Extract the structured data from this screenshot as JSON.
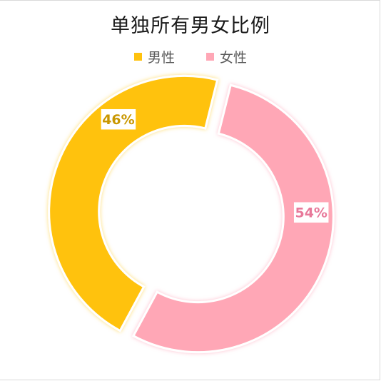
{
  "chart_data": {
    "type": "pie",
    "variant": "doughnut-exploded",
    "title": "单独所有男女比例",
    "legend_position": "top",
    "categories": [
      "男性",
      "女性"
    ],
    "values": [
      46,
      54
    ],
    "data_labels": [
      "46%",
      "54%"
    ],
    "colors": [
      "#FFC20E",
      "#FFA7B6"
    ],
    "label_colors": [
      "#C99700",
      "#E8799A"
    ]
  }
}
